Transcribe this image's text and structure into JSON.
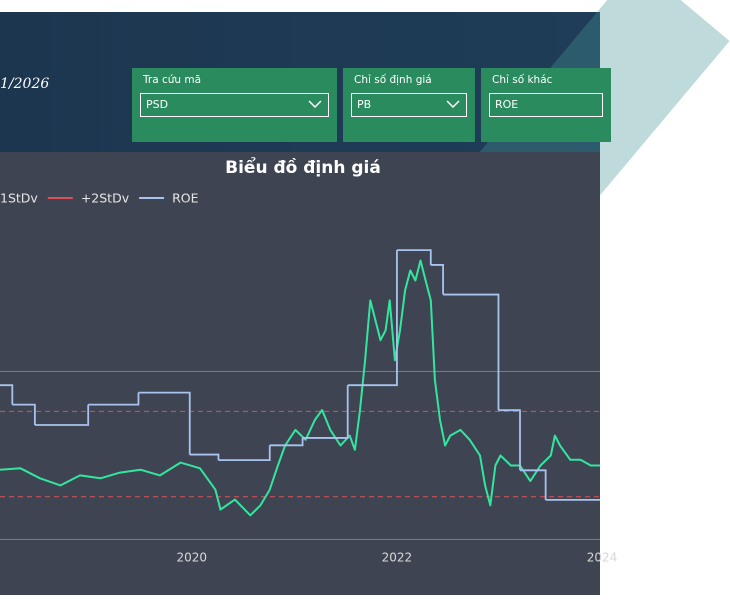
{
  "header": {
    "date": "1/2026",
    "filters": [
      {
        "label": "Tra cứu mã",
        "value": "PSD"
      },
      {
        "label": "Chỉ số định giá",
        "value": "PB"
      },
      {
        "label": "Chỉ số khác",
        "value": "ROE"
      }
    ]
  },
  "chart_data": {
    "type": "line",
    "title": "Biểu đồ định giá",
    "xlim": [
      2018.13,
      2023.98
    ],
    "xticks": [
      2020,
      2022,
      2024
    ],
    "ylim": [
      0.4,
      3.0
    ],
    "y2lim": [
      0,
      40
    ],
    "reference_color": "#e0505a",
    "reference_lines": [
      {
        "name": "1StDv",
        "value": 1.62,
        "dash": true
      },
      {
        "name": "+2StDv",
        "value": 1.9,
        "dash": false
      },
      {
        "value": 1.02,
        "dash": true
      },
      {
        "value": 0.72,
        "dash": false
      }
    ],
    "series": [
      {
        "color": "#33e6a0",
        "x": [
          2018.13,
          2018.33,
          2018.52,
          2018.72,
          2018.91,
          2019.11,
          2019.3,
          2019.5,
          2019.69,
          2019.89,
          2020.08,
          2020.23,
          2020.28,
          2020.42,
          2020.57,
          2020.67,
          2020.76,
          2020.84,
          2020.91,
          2021.01,
          2021.11,
          2021.2,
          2021.27,
          2021.35,
          2021.45,
          2021.54,
          2021.59,
          2021.64,
          2021.69,
          2021.74,
          2021.79,
          2021.84,
          2021.89,
          2021.93,
          2021.98,
          2022.03,
          2022.08,
          2022.13,
          2022.18,
          2022.23,
          2022.28,
          2022.33,
          2022.37,
          2022.42,
          2022.47,
          2022.52,
          2022.62,
          2022.71,
          2022.81,
          2022.86,
          2022.91,
          2022.96,
          2023.01,
          2023.11,
          2023.2,
          2023.3,
          2023.4,
          2023.5,
          2023.54,
          2023.59,
          2023.69,
          2023.79,
          2023.89,
          2023.98
        ],
        "values": [
          1.21,
          1.22,
          1.15,
          1.1,
          1.17,
          1.15,
          1.19,
          1.21,
          1.17,
          1.26,
          1.22,
          1.07,
          0.93,
          1.0,
          0.89,
          0.96,
          1.07,
          1.24,
          1.38,
          1.49,
          1.42,
          1.56,
          1.63,
          1.49,
          1.38,
          1.45,
          1.35,
          1.63,
          1.98,
          2.4,
          2.26,
          2.12,
          2.19,
          2.4,
          1.98,
          2.19,
          2.47,
          2.61,
          2.54,
          2.68,
          2.54,
          2.4,
          1.84,
          1.56,
          1.38,
          1.45,
          1.49,
          1.42,
          1.31,
          1.1,
          0.96,
          1.24,
          1.31,
          1.24,
          1.24,
          1.13,
          1.24,
          1.31,
          1.45,
          1.38,
          1.28,
          1.28,
          1.24,
          1.24
        ]
      },
      {
        "name": "ROE",
        "color": "#a9c3ee",
        "axis": "y2",
        "step": true,
        "x": [
          2018.13,
          2018.25,
          2018.47,
          2018.99,
          2019.48,
          2019.98,
          2020.26,
          2020.76,
          2021.08,
          2021.52,
          2022.0,
          2022.33,
          2022.45,
          2022.99,
          2023.2,
          2023.45
        ],
        "values": [
          21.6,
          19.5,
          17.3,
          19.5,
          20.8,
          14.1,
          13.5,
          15.1,
          15.9,
          21.6,
          36.2,
          34.6,
          31.4,
          18.9,
          12.4,
          9.2
        ]
      }
    ]
  }
}
